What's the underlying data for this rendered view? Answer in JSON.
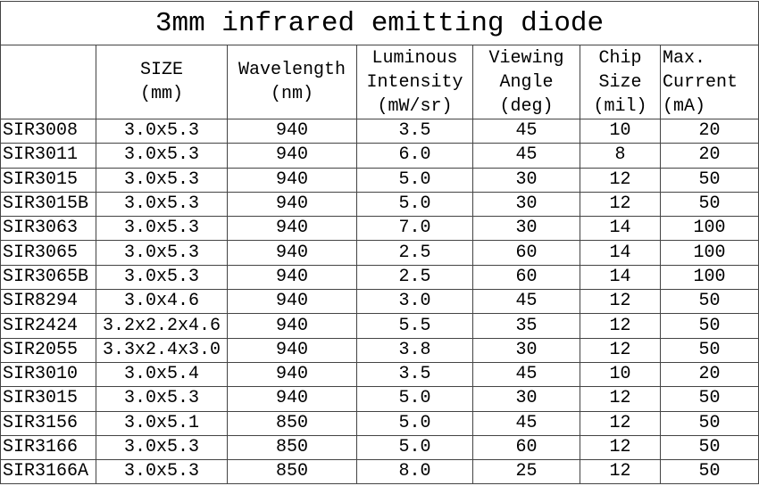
{
  "title": "3mm infrared emitting diode",
  "header": [
    [
      "SIZE",
      "(mm)"
    ],
    [
      "Wavelength",
      "(nm)"
    ],
    [
      "Luminous",
      "Intensity",
      "(mW/sr)"
    ],
    [
      "Viewing",
      "Angle",
      "(deg)"
    ],
    [
      "Chip",
      "Size",
      "(mil)"
    ],
    [
      "Max.",
      "Current",
      "(mA)"
    ]
  ],
  "rows": [
    [
      "SIR3008",
      "3.0x5.3",
      "940",
      "3.5",
      "45",
      "10",
      "20"
    ],
    [
      "SIR3011",
      "3.0x5.3",
      "940",
      "6.0",
      "45",
      "8",
      "20"
    ],
    [
      "SIR3015",
      "3.0x5.3",
      "940",
      "5.0",
      "30",
      "12",
      "50"
    ],
    [
      "SIR3015B",
      "3.0x5.3",
      "940",
      "5.0",
      "30",
      "12",
      "50"
    ],
    [
      "SIR3063",
      "3.0x5.3",
      "940",
      "7.0",
      "30",
      "14",
      "100"
    ],
    [
      "SIR3065",
      "3.0x5.3",
      "940",
      "2.5",
      "60",
      "14",
      "100"
    ],
    [
      "SIR3065B",
      "3.0x5.3",
      "940",
      "2.5",
      "60",
      "14",
      "100"
    ],
    [
      "SIR8294",
      "3.0x4.6",
      "940",
      "3.0",
      "45",
      "12",
      "50"
    ],
    [
      "SIR2424",
      "3.2x2.2x4.6",
      "940",
      "5.5",
      "35",
      "12",
      "50"
    ],
    [
      "SIR2055",
      "3.3x2.4x3.0",
      "940",
      "3.8",
      "30",
      "12",
      "50"
    ],
    [
      "SIR3010",
      "3.0x5.4",
      "940",
      "3.5",
      "45",
      "10",
      "20"
    ],
    [
      "SIR3015",
      "3.0x5.3",
      "940",
      "5.0",
      "30",
      "12",
      "50"
    ],
    [
      "SIR3156",
      "3.0x5.1",
      "850",
      "5.0",
      "45",
      "12",
      "50"
    ],
    [
      "SIR3166",
      "3.0x5.3",
      "850",
      "5.0",
      "60",
      "12",
      "50"
    ],
    [
      "SIR3166A",
      "3.0x5.3",
      "850",
      "8.0",
      "25",
      "12",
      "50"
    ]
  ]
}
